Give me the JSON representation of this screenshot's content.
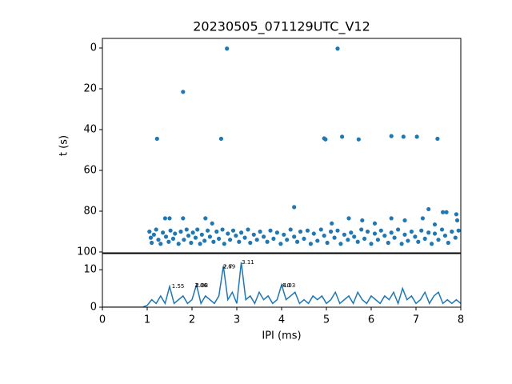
{
  "chart_data": [
    {
      "type": "scatter",
      "title": "20230505_071129UTC_V12",
      "ylabel": "t (s)",
      "color": "#1f77b4",
      "xlim": [
        0,
        8
      ],
      "ylim": [
        100.4,
        -4.7
      ],
      "yticks": [
        0,
        20,
        40,
        60,
        80,
        100
      ],
      "x": [
        1.22,
        1.8,
        2.65,
        2.78,
        4.95,
        4.98,
        5.25,
        5.35,
        5.72,
        6.45,
        6.72,
        7.02,
        7.48,
        4.28,
        7.28,
        7.6,
        7.68,
        7.9,
        1.4,
        1.5,
        1.8,
        2.3,
        5.5,
        5.8,
        6.45,
        6.75,
        7.15,
        2.45,
        5.12,
        6.08,
        7.42,
        7.92,
        1.05,
        1.08,
        1.1,
        1.15,
        1.2,
        1.25,
        1.3,
        1.35,
        1.42,
        1.48,
        1.52,
        1.58,
        1.62,
        1.7,
        1.75,
        1.82,
        1.88,
        1.92,
        1.98,
        2.02,
        2.08,
        2.12,
        2.18,
        2.22,
        2.28,
        2.35,
        2.4,
        2.48,
        2.55,
        2.6,
        2.68,
        2.72,
        2.8,
        2.85,
        2.92,
        2.98,
        3.05,
        3.1,
        3.18,
        3.25,
        3.3,
        3.38,
        3.45,
        3.52,
        3.6,
        3.68,
        3.75,
        3.82,
        3.9,
        3.98,
        4.05,
        4.12,
        4.2,
        4.28,
        4.35,
        4.42,
        4.5,
        4.58,
        4.65,
        4.72,
        4.8,
        4.88,
        4.95,
        5.02,
        5.1,
        5.18,
        5.25,
        5.32,
        5.4,
        5.48,
        5.55,
        5.62,
        5.7,
        5.78,
        5.85,
        5.92,
        6.0,
        6.08,
        6.15,
        6.22,
        6.3,
        6.38,
        6.45,
        6.52,
        6.6,
        6.68,
        6.75,
        6.82,
        6.9,
        6.98,
        7.05,
        7.12,
        7.2,
        7.28,
        7.35,
        7.42,
        7.5,
        7.58,
        7.65,
        7.72,
        7.8,
        7.88,
        7.95
      ],
      "values": [
        44.5,
        21.5,
        44.5,
        0.3,
        44.3,
        44.8,
        0.3,
        43.5,
        44.8,
        43.2,
        43.5,
        43.5,
        44.5,
        78,
        79,
        80.5,
        80.5,
        81.5,
        83.5,
        83.5,
        83.5,
        83.5,
        83.5,
        84.5,
        83.5,
        84.5,
        83.5,
        86,
        86,
        86,
        86.5,
        84.5,
        90,
        93,
        95.5,
        91.5,
        89,
        94,
        96,
        90.5,
        92.5,
        95,
        89.5,
        93.5,
        91,
        96,
        90,
        94,
        89,
        92,
        95.5,
        90.5,
        93,
        89,
        96,
        91.5,
        94.5,
        89.5,
        92.5,
        95,
        90,
        93.5,
        89,
        96,
        91,
        94,
        89.5,
        92,
        95,
        90.5,
        93,
        89,
        95.5,
        91.5,
        94,
        90,
        92.5,
        95,
        89.5,
        93.5,
        90.5,
        96,
        91.5,
        94,
        89,
        92.5,
        95,
        90,
        93.5,
        89.5,
        96,
        91,
        94.5,
        89,
        92,
        95.5,
        90,
        93,
        89.5,
        96,
        91.5,
        94,
        90.5,
        92.5,
        95,
        89,
        93.5,
        90,
        96,
        91,
        94,
        89.5,
        92,
        95.5,
        90.5,
        93,
        89,
        96,
        91.5,
        94.5,
        90,
        92.5,
        95,
        89.5,
        93.5,
        90.5,
        96,
        91,
        94,
        89,
        92,
        95.5,
        90,
        93,
        89.5
      ]
    },
    {
      "type": "line",
      "xlabel": "IPI (ms)",
      "color": "#1f77b4",
      "xlim": [
        0,
        8
      ],
      "xticks": [
        0,
        1,
        2,
        3,
        4,
        5,
        6,
        7,
        8
      ],
      "ylim": [
        0,
        14.3
      ],
      "yticks": [
        0,
        10
      ],
      "x": [
        0,
        0.1,
        0.2,
        0.3,
        0.4,
        0.5,
        0.6,
        0.7,
        0.8,
        0.9,
        1.0,
        1.1,
        1.2,
        1.3,
        1.4,
        1.5,
        1.6,
        1.7,
        1.8,
        1.9,
        2.0,
        2.1,
        2.2,
        2.3,
        2.4,
        2.5,
        2.6,
        2.7,
        2.8,
        2.9,
        3.0,
        3.1,
        3.2,
        3.3,
        3.4,
        3.5,
        3.6,
        3.7,
        3.8,
        3.9,
        4.0,
        4.1,
        4.2,
        4.3,
        4.4,
        4.5,
        4.6,
        4.7,
        4.8,
        4.9,
        5.0,
        5.1,
        5.2,
        5.3,
        5.4,
        5.5,
        5.6,
        5.7,
        5.8,
        5.9,
        6.0,
        6.1,
        6.2,
        6.3,
        6.4,
        6.5,
        6.6,
        6.7,
        6.8,
        6.9,
        7.0,
        7.1,
        7.2,
        7.3,
        7.4,
        7.5,
        7.6,
        7.7,
        7.8,
        7.9,
        8.0
      ],
      "values": [
        0,
        0,
        0,
        0,
        0,
        0,
        0,
        0,
        0,
        0,
        0.5,
        2,
        1,
        3,
        1,
        5.5,
        1,
        2,
        3,
        1,
        2,
        6,
        1,
        3,
        2,
        1,
        3,
        11,
        2,
        4,
        1,
        12,
        2,
        3,
        1,
        4,
        2,
        3,
        1,
        2,
        6,
        2,
        3,
        4,
        1,
        2,
        1,
        3,
        2,
        3,
        1,
        2,
        4,
        1,
        2,
        3,
        1,
        4,
        2,
        1,
        3,
        2,
        1,
        3,
        2,
        4,
        1,
        5,
        2,
        3,
        1,
        2,
        4,
        1,
        3,
        4,
        1,
        2,
        1,
        2,
        1
      ],
      "annotations": [
        {
          "x": 1.55,
          "y": 5.5,
          "text": "1.55"
        },
        {
          "x": 2.06,
          "y": 5.8,
          "text": "2.06"
        },
        {
          "x": 2.08,
          "y": 5.8,
          "text": "2.08"
        },
        {
          "x": 2.69,
          "y": 10.8,
          "text": "2.69"
        },
        {
          "x": 2.7,
          "y": 10.8,
          "text": "2.7"
        },
        {
          "x": 3.11,
          "y": 12,
          "text": "3.11"
        },
        {
          "x": 4.0,
          "y": 5.8,
          "text": "4.0"
        },
        {
          "x": 4.03,
          "y": 5.8,
          "text": "4.03"
        }
      ]
    }
  ]
}
